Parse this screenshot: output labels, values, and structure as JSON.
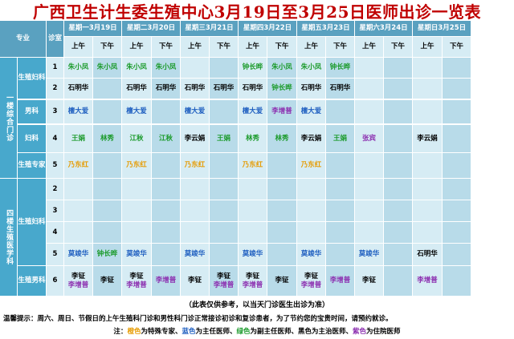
{
  "title": "广西卫生计生委生殖中心3月19日至3月25日医师出诊一览表",
  "header": {
    "major": "专业",
    "room": "诊室"
  },
  "days": [
    {
      "weekday": "星期一",
      "date": "3月19日"
    },
    {
      "weekday": "星期二",
      "date": "3月20日"
    },
    {
      "weekday": "星期三",
      "date": "3月21日"
    },
    {
      "weekday": "星期四",
      "date": "3月22日"
    },
    {
      "weekday": "星期五",
      "date": "3月23日"
    },
    {
      "weekday": "星期六",
      "date": "3月24日"
    },
    {
      "weekday": "星期日",
      "date": "3月25日"
    }
  ],
  "am": "上午",
  "pm": "下午",
  "floors": [
    "一楼综合门诊",
    "四楼生殖医学科"
  ],
  "departments": [
    "生殖妇科",
    "男科",
    "妇科",
    "生殖专家",
    "生殖妇科",
    "生殖男科"
  ],
  "rooms": [
    "1",
    "2",
    "3",
    "4",
    "5",
    "2",
    "3",
    "4",
    "5",
    "6"
  ],
  "colors": {
    "orange": "#e69b00",
    "blue": "#1f5fc0",
    "green": "#1a9a2a",
    "black": "#000000",
    "purple": "#8c2fb0",
    "title": "#c00000",
    "header": "#5aa1c0",
    "cell": "#d6ecf4"
  },
  "schedule": [
    [
      [
        "朱小凤",
        "green"
      ],
      [
        "朱小凤",
        "green"
      ],
      [
        "朱小凤",
        "green"
      ],
      [
        "朱小凤",
        "green"
      ],
      [
        "",
        ""
      ],
      [
        "",
        ""
      ],
      [
        "钟长晔",
        "green"
      ],
      [
        "朱小凤",
        "green"
      ],
      [
        "朱小凤",
        "green"
      ],
      [
        "钟长晔",
        "green"
      ],
      [
        "",
        ""
      ],
      [
        "",
        ""
      ],
      [
        "",
        ""
      ],
      [
        "",
        ""
      ]
    ],
    [
      [
        "石明华",
        "black"
      ],
      [
        "",
        ""
      ],
      [
        "石明华",
        "black"
      ],
      [
        "石明华",
        "black"
      ],
      [
        "石明华",
        "black"
      ],
      [
        "石明华",
        "black"
      ],
      [
        "石明华",
        "black"
      ],
      [
        "钟长晔",
        "green"
      ],
      [
        "石明华",
        "black"
      ],
      [
        "石明华",
        "black"
      ],
      [
        "",
        ""
      ],
      [
        "",
        ""
      ],
      [
        "",
        ""
      ],
      [
        "",
        ""
      ]
    ],
    [
      [
        "檀大爱",
        "blue"
      ],
      [
        "",
        ""
      ],
      [
        "檀大爱",
        "blue"
      ],
      [
        "",
        ""
      ],
      [
        "檀大爱",
        "blue"
      ],
      [
        "",
        ""
      ],
      [
        "檀大爱",
        "blue"
      ],
      [
        "李增普",
        "purple"
      ],
      [
        "檀大爱",
        "blue"
      ],
      [
        "",
        ""
      ],
      [
        "",
        ""
      ],
      [
        "",
        ""
      ],
      [
        "",
        ""
      ],
      [
        "",
        ""
      ]
    ],
    [
      [
        "王娟",
        "green"
      ],
      [
        "林秀",
        "green"
      ],
      [
        "江秋",
        "green"
      ],
      [
        "江秋",
        "green"
      ],
      [
        "李云娟",
        "black"
      ],
      [
        "王娟",
        "green"
      ],
      [
        "林秀",
        "green"
      ],
      [
        "林秀",
        "green"
      ],
      [
        "李云娟",
        "black"
      ],
      [
        "王娟",
        "green"
      ],
      [
        "张宾",
        "purple"
      ],
      [
        "",
        ""
      ],
      [
        "李云娟",
        "black"
      ],
      [
        "",
        ""
      ]
    ],
    [
      [
        "乃东红",
        "orange"
      ],
      [
        "",
        ""
      ],
      [
        "乃东红",
        "orange"
      ],
      [
        "",
        ""
      ],
      [
        "乃东红",
        "orange"
      ],
      [
        "",
        ""
      ],
      [
        "乃东红",
        "orange"
      ],
      [
        "",
        ""
      ],
      [
        "乃东红",
        "orange"
      ],
      [
        "",
        ""
      ],
      [
        "",
        ""
      ],
      [
        "",
        ""
      ],
      [
        "",
        ""
      ],
      [
        "",
        ""
      ]
    ],
    [
      [
        "",
        ""
      ],
      [
        "",
        ""
      ],
      [
        "",
        ""
      ],
      [
        "",
        ""
      ],
      [
        "",
        ""
      ],
      [
        "",
        ""
      ],
      [
        "",
        ""
      ],
      [
        "",
        ""
      ],
      [
        "",
        ""
      ],
      [
        "",
        ""
      ],
      [
        "",
        ""
      ],
      [
        "",
        ""
      ],
      [
        "",
        ""
      ],
      [
        "",
        ""
      ]
    ],
    [
      [
        "",
        ""
      ],
      [
        "",
        ""
      ],
      [
        "",
        ""
      ],
      [
        "",
        ""
      ],
      [
        "",
        ""
      ],
      [
        "",
        ""
      ],
      [
        "",
        ""
      ],
      [
        "",
        ""
      ],
      [
        "",
        ""
      ],
      [
        "",
        ""
      ],
      [
        "",
        ""
      ],
      [
        "",
        ""
      ],
      [
        "",
        ""
      ],
      [
        "",
        ""
      ]
    ],
    [
      [
        "",
        ""
      ],
      [
        "",
        ""
      ],
      [
        "",
        ""
      ],
      [
        "",
        ""
      ],
      [
        "",
        ""
      ],
      [
        "",
        ""
      ],
      [
        "",
        ""
      ],
      [
        "",
        ""
      ],
      [
        "",
        ""
      ],
      [
        "",
        ""
      ],
      [
        "",
        ""
      ],
      [
        "",
        ""
      ],
      [
        "",
        ""
      ],
      [
        "",
        ""
      ]
    ],
    [
      [
        "莫竣华",
        "blue"
      ],
      [
        "钟长晔",
        "green"
      ],
      [
        "莫竣华",
        "blue"
      ],
      [
        "",
        ""
      ],
      [
        "莫竣华",
        "blue"
      ],
      [
        "",
        ""
      ],
      [
        "莫竣华",
        "blue"
      ],
      [
        "",
        ""
      ],
      [
        "莫竣华",
        "blue"
      ],
      [
        "",
        ""
      ],
      [
        "莫竣华",
        "blue"
      ],
      [
        "",
        ""
      ],
      [
        "石明华",
        "black"
      ],
      [
        "",
        ""
      ]
    ],
    [
      [
        "李钲\n李增普",
        "mixA"
      ],
      [
        "李钲",
        "black"
      ],
      [
        "李钲\n李增普",
        "mixA"
      ],
      [
        "李增普",
        "purple"
      ],
      [
        "李钲",
        "black"
      ],
      [
        "李钲\n李增普",
        "mixA"
      ],
      [
        "李钲\n李增普",
        "mixA"
      ],
      [
        "李钲",
        "black"
      ],
      [
        "李钲\n李增普",
        "mixA"
      ],
      [
        "李增普",
        "purple"
      ],
      [
        "李钲",
        "black"
      ],
      [
        "",
        ""
      ],
      [
        "李增普",
        "purple"
      ],
      [
        "",
        ""
      ]
    ]
  ],
  "note": "（此表仅供参考，以当天门诊医生出诊为准）",
  "tips": "温馨提示：周六、周日、节假日的上午生殖科门诊和男性科门诊正常接诊初诊和复诊患者，为了节约您的宝贵时间，请预约就诊。",
  "legend": [
    {
      "text": "注：",
      "color": "black"
    },
    {
      "text": "橙色",
      "color": "orange"
    },
    {
      "text": "为特殊专家、",
      "color": "black"
    },
    {
      "text": "蓝色",
      "color": "blue"
    },
    {
      "text": "为主任医师、",
      "color": "black"
    },
    {
      "text": "绿色",
      "color": "green"
    },
    {
      "text": "为副主任医师、黑色为主治医师、",
      "color": "black"
    },
    {
      "text": "紫色",
      "color": "purple"
    },
    {
      "text": "为住院医师",
      "color": "black"
    }
  ]
}
